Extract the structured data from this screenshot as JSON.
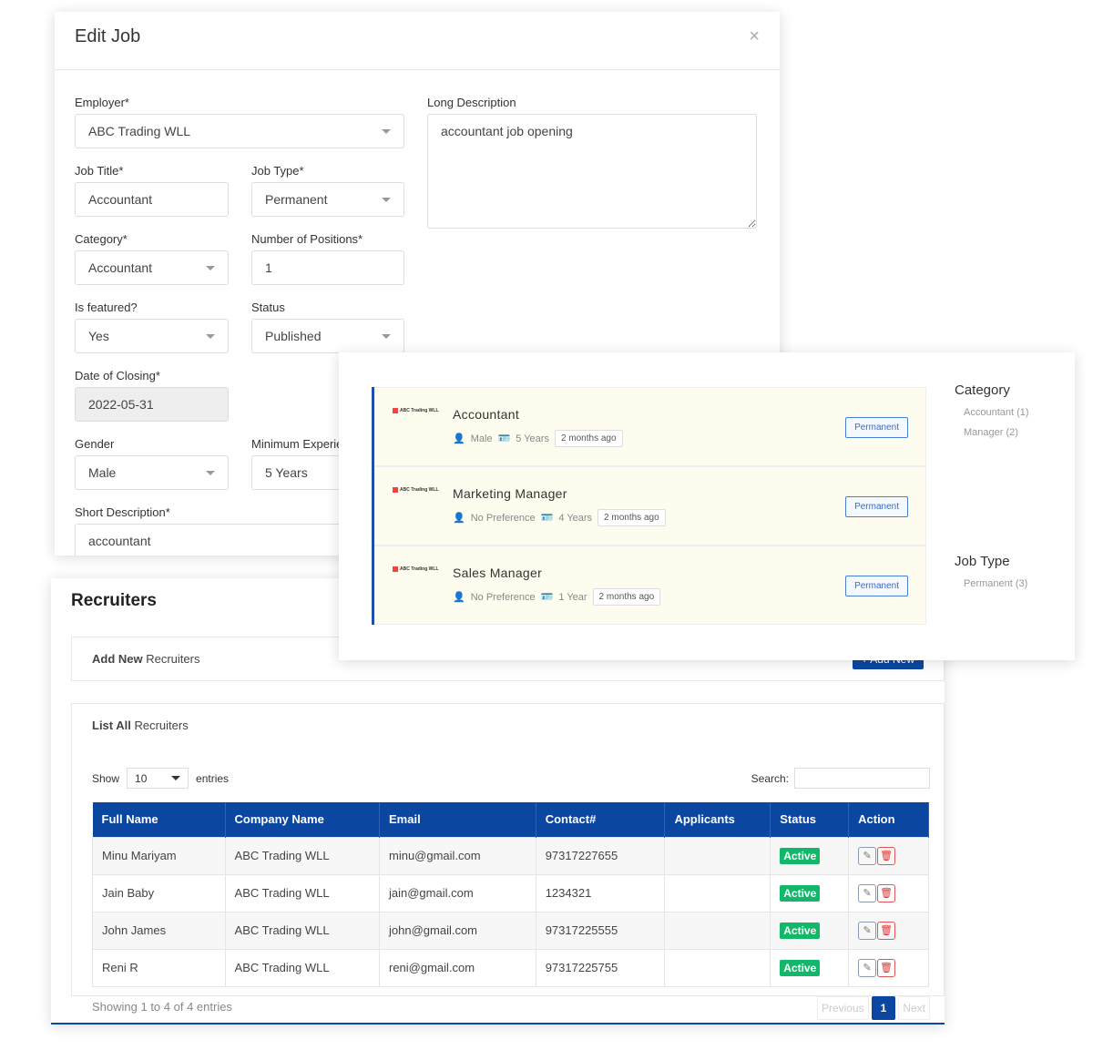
{
  "edit_job": {
    "title": "Edit Job",
    "close": "×",
    "employer": {
      "label": "Employer*",
      "value": "ABC Trading WLL"
    },
    "long_description": {
      "label": "Long Description",
      "value": "accountant job opening"
    },
    "job_title": {
      "label": "Job Title*",
      "value": "Accountant"
    },
    "job_type": {
      "label": "Job Type*",
      "value": "Permanent"
    },
    "category": {
      "label": "Category*",
      "value": "Accountant"
    },
    "positions": {
      "label": "Number of Positions*",
      "value": "1"
    },
    "featured": {
      "label": "Is featured?",
      "value": "Yes"
    },
    "status": {
      "label": "Status",
      "value": "Published"
    },
    "closing": {
      "label": "Date of Closing*",
      "value": "2022-05-31"
    },
    "gender": {
      "label": "Gender",
      "value": "Male"
    },
    "experience": {
      "label": "Minimum Experience",
      "value": "5 Years"
    },
    "short_description": {
      "label": "Short Description*",
      "value": "accountant"
    }
  },
  "job_list": {
    "jobs": [
      {
        "logo": "ABC Trading WLL",
        "title": "Accountant",
        "gender": "Male",
        "experience": "5 Years",
        "posted": "2 months ago",
        "type": "Permanent"
      },
      {
        "logo": "ABC Trading WLL",
        "title": "Marketing Manager",
        "gender": "No Preference",
        "experience": "4 Years",
        "posted": "2 months ago",
        "type": "Permanent"
      },
      {
        "logo": "ABC Trading WLL",
        "title": "Sales Manager",
        "gender": "No Preference",
        "experience": "1 Year",
        "posted": "2 months ago",
        "type": "Permanent"
      }
    ],
    "category_title": "Category",
    "categories": [
      "Accountant (1)",
      "Manager (2)"
    ],
    "jobtype_title": "Job Type",
    "jobtypes": [
      "Permanent (3)"
    ]
  },
  "recruiters": {
    "title": "Recruiters",
    "add_bold": "Add New",
    "add_rest": " Recruiters",
    "add_button": "+ Add New",
    "list_bold": "List All",
    "list_rest": " Recruiters",
    "show": "Show",
    "entries_value": "10",
    "entries": "entries",
    "search_label": "Search:",
    "columns": [
      "Full Name",
      "Company Name",
      "Email",
      "Contact#",
      "Applicants",
      "Status",
      "Action"
    ],
    "rows": [
      [
        "Minu Mariyam",
        "ABC Trading WLL",
        "minu@gmail.com",
        "97317227655",
        "",
        "Active"
      ],
      [
        "Jain Baby",
        "ABC Trading WLL",
        "jain@gmail.com",
        "1234321",
        "",
        "Active"
      ],
      [
        "John James",
        "ABC Trading WLL",
        "john@gmail.com",
        "97317225555",
        "",
        "Active"
      ],
      [
        "Reni R",
        "ABC Trading WLL",
        "reni@gmail.com",
        "97317225755",
        "",
        "Active"
      ]
    ],
    "footer": "Showing 1 to 4 of 4 entries",
    "prev": "Previous",
    "page": "1",
    "next": "Next"
  },
  "colors": {
    "primary": "#0b47a1",
    "active": "#12b76a",
    "job_bg": "#fefcee"
  }
}
